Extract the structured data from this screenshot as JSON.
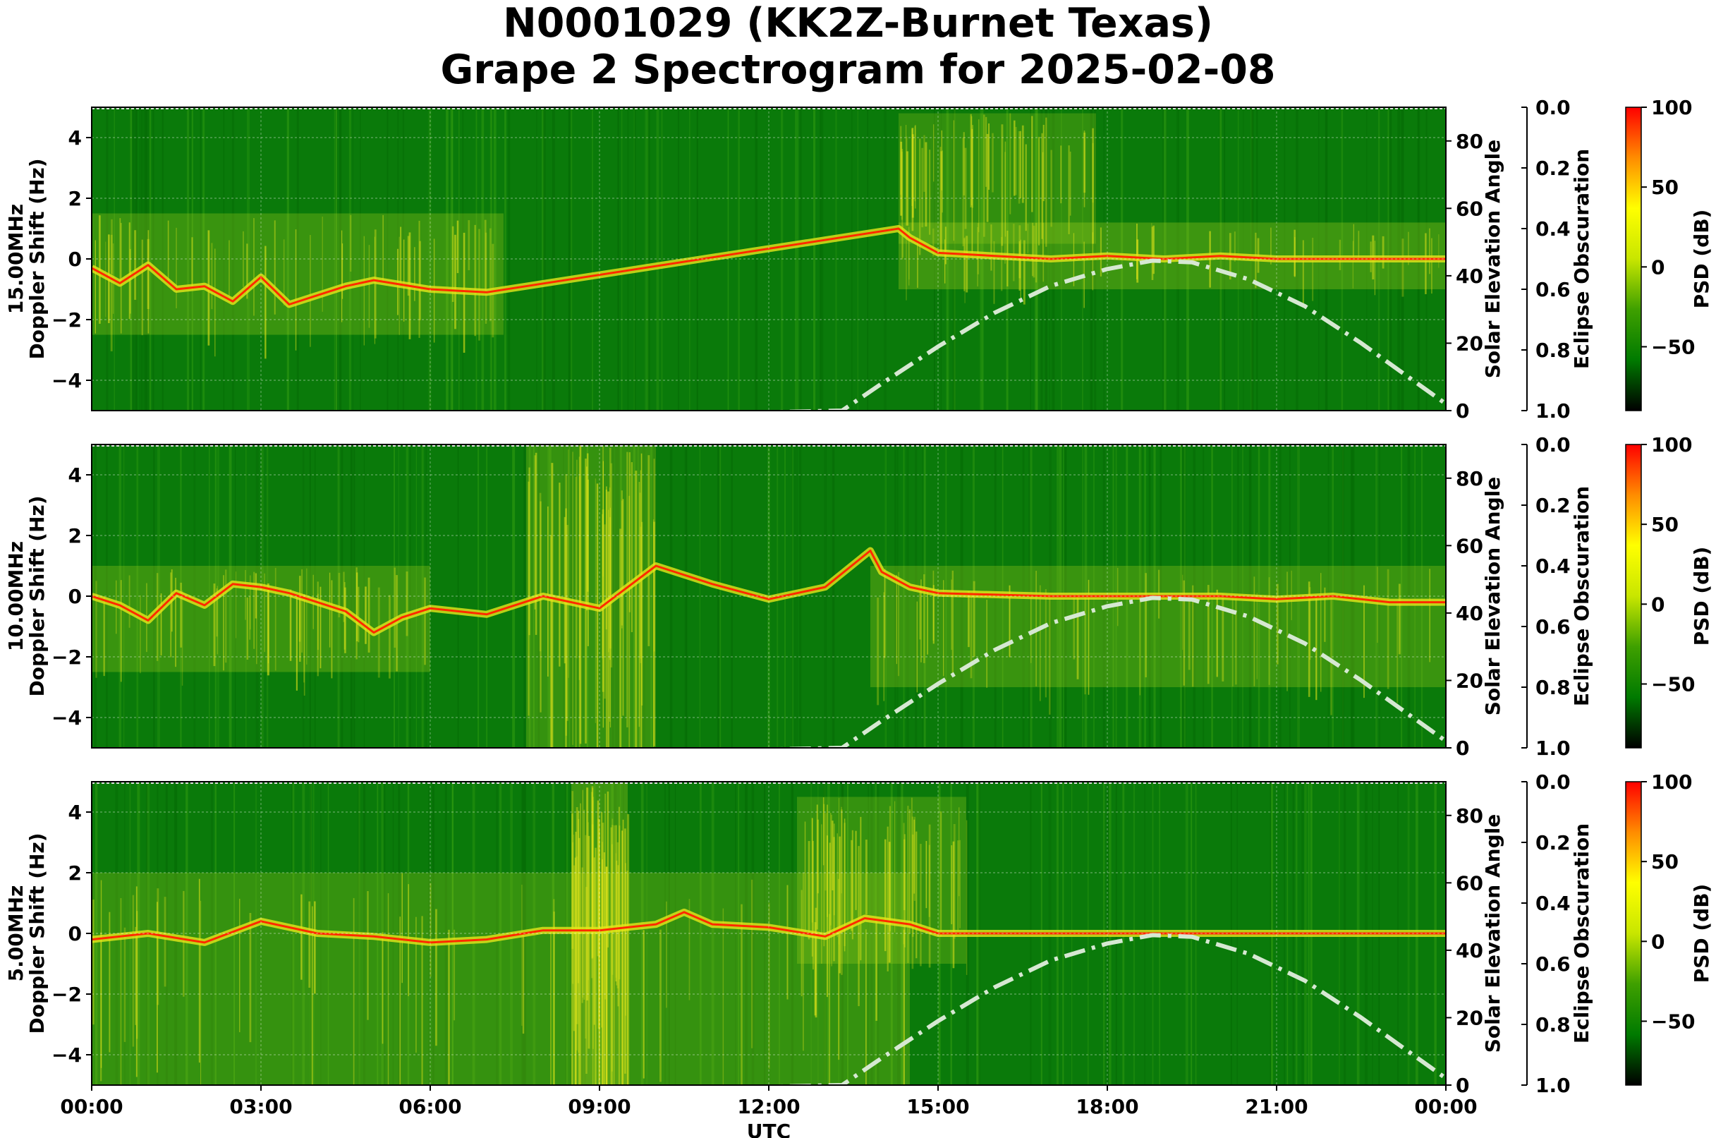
{
  "title": {
    "line1": "N0001029 (KK2Z-Burnet Texas)",
    "line2": "Grape 2 Spectrogram for 2025-02-08"
  },
  "colors": {
    "background_green": "#0a7a0a",
    "signal_yellow": "#e6e61a",
    "trace_red": "#ff2a00",
    "solar_curve": "#d6e8d2",
    "cmap": [
      "#000000",
      "#007a00",
      "#3fa000",
      "#c8e600",
      "#ffff00",
      "#ff8c00",
      "#ff0000"
    ]
  },
  "chart_data": [
    {
      "type": "heatmap",
      "panel": "15.00MHz",
      "ylabel_freq": "15.00MHz",
      "ylabel": "Doppler Shift (Hz)",
      "ylim": [
        -5,
        5
      ],
      "yticks": [
        "4",
        "2",
        "0",
        "−2",
        "−4"
      ],
      "right_ylabel": "Solar Elevation Angle",
      "right_ylim": [
        0,
        90
      ],
      "right_yticks": [
        "0",
        "20",
        "40",
        "60",
        "80"
      ],
      "eclipse_label": "Eclipse Obscuration",
      "eclipse_ticks": [
        "0.0",
        "0.2",
        "0.4",
        "0.6",
        "0.8",
        "1.0"
      ],
      "colorbar_label": "PSD (dB)",
      "colorbar_ticks": [
        "100",
        "50",
        "0",
        "−50"
      ],
      "colorbar_range": [
        -90,
        100
      ],
      "solar_elevation": {
        "x_hours": [
          0,
          13.3,
          14,
          15,
          16,
          17,
          18,
          18.8,
          19.5,
          20.5,
          21.5,
          22.5,
          23.5,
          24
        ],
        "deg": [
          -5,
          0,
          8,
          19,
          29,
          37,
          42,
          44.5,
          44,
          39,
          31,
          20,
          8,
          2
        ]
      },
      "doppler_trace": {
        "x_hours": [
          0,
          0.5,
          1,
          1.5,
          2,
          2.5,
          3,
          3.5,
          4,
          4.5,
          5,
          6,
          7,
          14.3,
          14.5,
          15,
          16,
          17,
          18,
          19,
          20,
          21,
          22,
          23,
          24
        ],
        "hz": [
          -0.3,
          -0.8,
          -0.2,
          -1.0,
          -0.9,
          -1.4,
          -0.6,
          -1.5,
          -1.2,
          -0.9,
          -0.7,
          -1.0,
          -1.1,
          1.0,
          0.7,
          0.2,
          0.1,
          0.0,
          0.1,
          0.0,
          0.1,
          0.0,
          0.0,
          0.0,
          0.0
        ]
      },
      "signal_regions": [
        {
          "x_start": 0.0,
          "x_end": 7.3,
          "y_low": -2.5,
          "y_high": 1.5,
          "intensity": 0.55
        },
        {
          "x_start": 14.3,
          "x_end": 24.0,
          "y_low": -1.0,
          "y_high": 1.2,
          "intensity": 0.6
        },
        {
          "x_start": 14.3,
          "x_end": 17.8,
          "y_low": 0.5,
          "y_high": 4.8,
          "intensity": 0.45
        }
      ]
    },
    {
      "type": "heatmap",
      "panel": "10.00MHz",
      "ylabel_freq": "10.00MHz",
      "ylabel": "Doppler Shift (Hz)",
      "ylim": [
        -5,
        5
      ],
      "yticks": [
        "4",
        "2",
        "0",
        "−2",
        "−4"
      ],
      "right_ylabel": "Solar Elevation Angle",
      "right_ylim": [
        0,
        90
      ],
      "right_yticks": [
        "0",
        "20",
        "40",
        "60",
        "80"
      ],
      "eclipse_label": "Eclipse Obscuration",
      "eclipse_ticks": [
        "0.0",
        "0.2",
        "0.4",
        "0.6",
        "0.8",
        "1.0"
      ],
      "colorbar_label": "PSD (dB)",
      "colorbar_ticks": [
        "100",
        "50",
        "0",
        "−50"
      ],
      "colorbar_range": [
        -90,
        100
      ],
      "solar_elevation": {
        "x_hours": [
          0,
          13.3,
          14,
          15,
          16,
          17,
          18,
          18.8,
          19.5,
          20.5,
          21.5,
          22.5,
          23.5,
          24
        ],
        "deg": [
          -5,
          0,
          8,
          19,
          29,
          37,
          42,
          44.5,
          44,
          39,
          31,
          20,
          8,
          2
        ]
      },
      "doppler_trace": {
        "x_hours": [
          0,
          0.5,
          1,
          1.5,
          2,
          2.5,
          3,
          3.5,
          4,
          4.5,
          5,
          5.5,
          6,
          7,
          8,
          9,
          10,
          11,
          12,
          13,
          13.8,
          14,
          14.5,
          15,
          16,
          17,
          18,
          19,
          20,
          21,
          22,
          23,
          24
        ],
        "hz": [
          0.0,
          -0.3,
          -0.8,
          0.1,
          -0.3,
          0.4,
          0.3,
          0.1,
          -0.2,
          -0.5,
          -1.2,
          -0.7,
          -0.4,
          -0.6,
          0.0,
          -0.4,
          1.0,
          0.4,
          -0.1,
          0.3,
          1.5,
          0.8,
          0.3,
          0.1,
          0.05,
          0.0,
          0.0,
          0.0,
          0.0,
          -0.1,
          0.0,
          -0.2,
          -0.2
        ]
      },
      "signal_regions": [
        {
          "x_start": 0.0,
          "x_end": 6.0,
          "y_low": -2.5,
          "y_high": 1.0,
          "intensity": 0.55
        },
        {
          "x_start": 7.7,
          "x_end": 10.0,
          "y_low": -5.0,
          "y_high": 5.0,
          "intensity": 0.5
        },
        {
          "x_start": 13.8,
          "x_end": 24.0,
          "y_low": -3.0,
          "y_high": 1.0,
          "intensity": 0.55
        }
      ]
    },
    {
      "type": "heatmap",
      "panel": "5.00MHz",
      "ylabel_freq": "5.00MHz",
      "ylabel": "Doppler Shift (Hz)",
      "ylim": [
        -5,
        5
      ],
      "yticks": [
        "4",
        "2",
        "0",
        "−2",
        "−4"
      ],
      "right_ylabel": "Solar Elevation Angle",
      "right_ylim": [
        0,
        90
      ],
      "right_yticks": [
        "0",
        "20",
        "40",
        "60",
        "80"
      ],
      "eclipse_label": "Eclipse Obscuration",
      "eclipse_ticks": [
        "0.0",
        "0.2",
        "0.4",
        "0.6",
        "0.8",
        "1.0"
      ],
      "colorbar_label": "PSD (dB)",
      "colorbar_ticks": [
        "100",
        "50",
        "0",
        "−50"
      ],
      "colorbar_range": [
        -90,
        100
      ],
      "solar_elevation": {
        "x_hours": [
          0,
          13.3,
          14,
          15,
          16,
          17,
          18,
          18.8,
          19.5,
          20.5,
          21.5,
          22.5,
          23.5,
          24
        ],
        "deg": [
          -5,
          0,
          8,
          19,
          29,
          37,
          42,
          44.5,
          44,
          39,
          31,
          20,
          8,
          2
        ]
      },
      "doppler_trace": {
        "x_hours": [
          0,
          1,
          2,
          3,
          4,
          5,
          6,
          7,
          8,
          9,
          10,
          10.5,
          11,
          12,
          13,
          13.7,
          14.5,
          15,
          16,
          17,
          18,
          19,
          20,
          21,
          22,
          23,
          24
        ],
        "hz": [
          -0.2,
          0.0,
          -0.3,
          0.4,
          0.0,
          -0.1,
          -0.3,
          -0.2,
          0.1,
          0.1,
          0.3,
          0.7,
          0.3,
          0.2,
          -0.1,
          0.5,
          0.3,
          0.0,
          0.0,
          0.0,
          0.0,
          0.0,
          0.0,
          0.0,
          0.0,
          0.0,
          0.0
        ]
      },
      "signal_regions": [
        {
          "x_start": 0.0,
          "x_end": 14.5,
          "y_low": -5.0,
          "y_high": 2.0,
          "intensity": 0.5
        },
        {
          "x_start": 8.5,
          "x_end": 9.5,
          "y_low": -5.0,
          "y_high": 5.0,
          "intensity": 0.6
        },
        {
          "x_start": 12.5,
          "x_end": 15.5,
          "y_low": -1.0,
          "y_high": 4.5,
          "intensity": 0.5
        }
      ]
    }
  ],
  "xaxis": {
    "label": "UTC",
    "ticks": [
      "00:00",
      "03:00",
      "06:00",
      "09:00",
      "12:00",
      "15:00",
      "18:00",
      "21:00",
      "00:00"
    ],
    "range_hours": [
      0,
      24
    ]
  }
}
